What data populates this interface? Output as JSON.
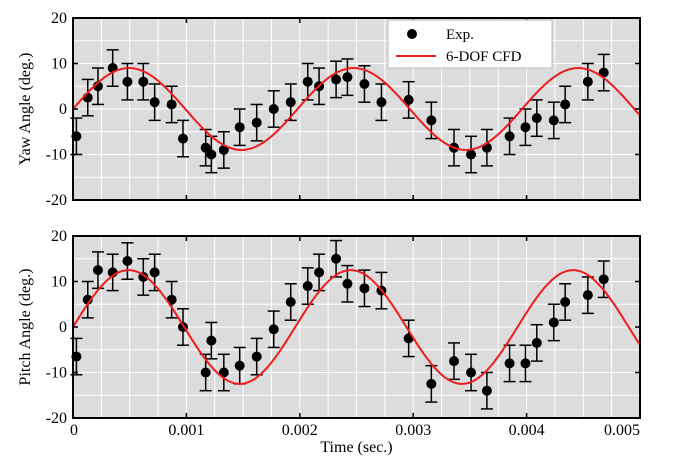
{
  "chart_data": [
    {
      "type": "scatter",
      "ylabel": "Yaw Angle (deg.)",
      "xlim": [
        0,
        0.005
      ],
      "ylim": [
        -20,
        20
      ],
      "x_ticks": [
        "",
        "",
        "",
        "",
        "",
        ""
      ],
      "y_ticks": [
        "-20",
        "-10",
        "0",
        "10",
        "20"
      ],
      "grid": true,
      "legend": {
        "position": "top-right",
        "entries": [
          "Exp.",
          "6-DOF CFD"
        ]
      },
      "series": [
        {
          "name": "Exp.",
          "marker": "circle",
          "color": "#000000",
          "x": [
            3e-05,
            0.00013,
            0.00022,
            0.00035,
            0.00048,
            0.00062,
            0.00072,
            0.00087,
            0.00097,
            0.00117,
            0.00122,
            0.00133,
            0.00147,
            0.00162,
            0.00177,
            0.00192,
            0.00207,
            0.00217,
            0.00232,
            0.00242,
            0.00257,
            0.00272,
            0.00296,
            0.00316,
            0.00336,
            0.00351,
            0.00365,
            0.00385,
            0.00399,
            0.00409,
            0.00424,
            0.00434,
            0.00454,
            0.00468
          ],
          "y": [
            -6,
            2.5,
            5,
            9,
            6,
            6,
            1.5,
            1,
            -6.5,
            -8.5,
            -10,
            -9,
            -4,
            -3,
            0,
            1.5,
            6,
            5,
            6.5,
            7,
            5.5,
            1.5,
            2,
            -2.5,
            -8.5,
            -10,
            -8.5,
            -6,
            -4,
            -2,
            -2.5,
            1,
            6,
            8
          ],
          "err": [
            4,
            4,
            4,
            4,
            4,
            4,
            4,
            4,
            4,
            4,
            4,
            4,
            4,
            4,
            4,
            4,
            4,
            4,
            4,
            4,
            4,
            4,
            4,
            4,
            4,
            4,
            4,
            4,
            4,
            4,
            4,
            4,
            4,
            4
          ]
        },
        {
          "name": "6-DOF CFD",
          "type": "line",
          "color": "#ee1c1c",
          "amplitude": 9,
          "period": 0.00198,
          "x_start": 0,
          "x_end": 0.005
        }
      ]
    },
    {
      "type": "scatter",
      "xlabel": "Time (sec.)",
      "ylabel": "Pitch Angle (deg.)",
      "xlim": [
        0,
        0.005
      ],
      "ylim": [
        -20,
        20
      ],
      "x_ticks": [
        "0",
        "0.001",
        "0.002",
        "0.003",
        "0.004",
        "0.005"
      ],
      "y_ticks": [
        "-20",
        "-10",
        "0",
        "10",
        "20"
      ],
      "grid": true,
      "series": [
        {
          "name": "Exp.",
          "marker": "circle",
          "color": "#000000",
          "x": [
            3e-05,
            0.00013,
            0.00022,
            0.00035,
            0.00048,
            0.00062,
            0.00072,
            0.00087,
            0.00097,
            0.00117,
            0.00122,
            0.00133,
            0.00147,
            0.00162,
            0.00177,
            0.00192,
            0.00207,
            0.00217,
            0.00232,
            0.00242,
            0.00257,
            0.00272,
            0.00296,
            0.00316,
            0.00336,
            0.00351,
            0.00365,
            0.00385,
            0.00399,
            0.00409,
            0.00424,
            0.00434,
            0.00454,
            0.00468
          ],
          "y": [
            -6.5,
            6,
            12.5,
            12,
            14.5,
            11,
            12,
            6,
            0,
            -10,
            -3,
            -10,
            -8.5,
            -6.5,
            -0.5,
            5.5,
            9,
            12,
            15,
            9.5,
            8.5,
            8,
            -2.5,
            -12.5,
            -7.5,
            -10,
            -14,
            -8,
            -8,
            -3.5,
            1,
            5.5,
            7,
            10.5
          ],
          "err": [
            4,
            4,
            4,
            4,
            4,
            4,
            4,
            4,
            4,
            4,
            4,
            4,
            4,
            4,
            4,
            4,
            4,
            4,
            4,
            4,
            4,
            4,
            4,
            4,
            4,
            4,
            4,
            4,
            4,
            4,
            4,
            4,
            4,
            4
          ]
        },
        {
          "name": "6-DOF CFD",
          "type": "line",
          "color": "#ee1c1c",
          "amplitude": 12.5,
          "period": 0.00196,
          "x_start": 0,
          "x_end": 0.005
        }
      ]
    }
  ]
}
